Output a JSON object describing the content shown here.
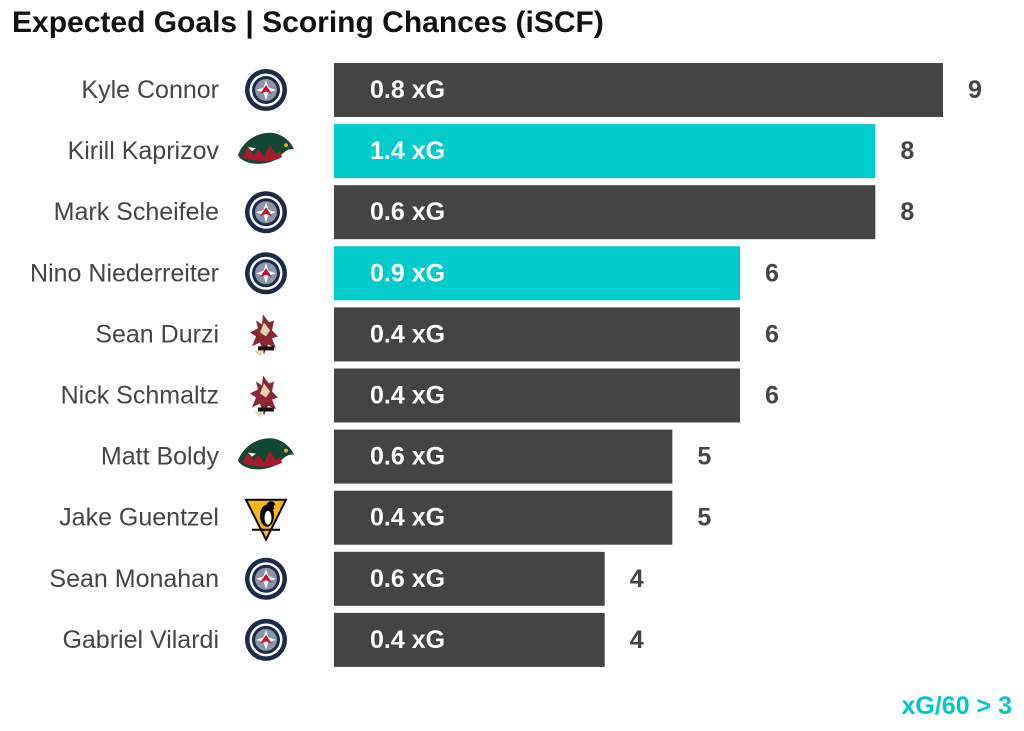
{
  "chart_data": {
    "type": "bar",
    "orientation": "horizontal",
    "title": "Expected Goals | Scoring Chances (iSCF)",
    "annotation": "xG/60 > 3",
    "xlim": [
      0,
      9
    ],
    "grid": false,
    "colors": {
      "default": "#444444",
      "highlight": "#00cccc"
    },
    "categories": [
      "Kyle Connor",
      "Kirill Kaprizov",
      "Mark Scheifele",
      "Nino Niederreiter",
      "Sean Durzi",
      "Nick Schmaltz",
      "Matt Boldy",
      "Jake Guentzel",
      "Sean Monahan",
      "Gabriel Vilardi"
    ],
    "values": [
      9,
      8,
      8,
      6,
      6,
      6,
      5,
      5,
      4,
      4
    ],
    "xg_labels": [
      "0.8 xG",
      "1.4 xG",
      "0.6 xG",
      "0.9 xG",
      "0.4 xG",
      "0.4 xG",
      "0.6 xG",
      "0.4 xG",
      "0.6 xG",
      "0.4 xG"
    ],
    "highlighted": [
      false,
      true,
      false,
      true,
      false,
      false,
      false,
      false,
      false,
      false
    ],
    "team_logos": [
      "jets-logo",
      "wild-logo",
      "jets-logo",
      "jets-logo",
      "coyotes-logo",
      "coyotes-logo",
      "wild-logo",
      "penguins-logo",
      "jets-logo",
      "jets-logo"
    ]
  }
}
